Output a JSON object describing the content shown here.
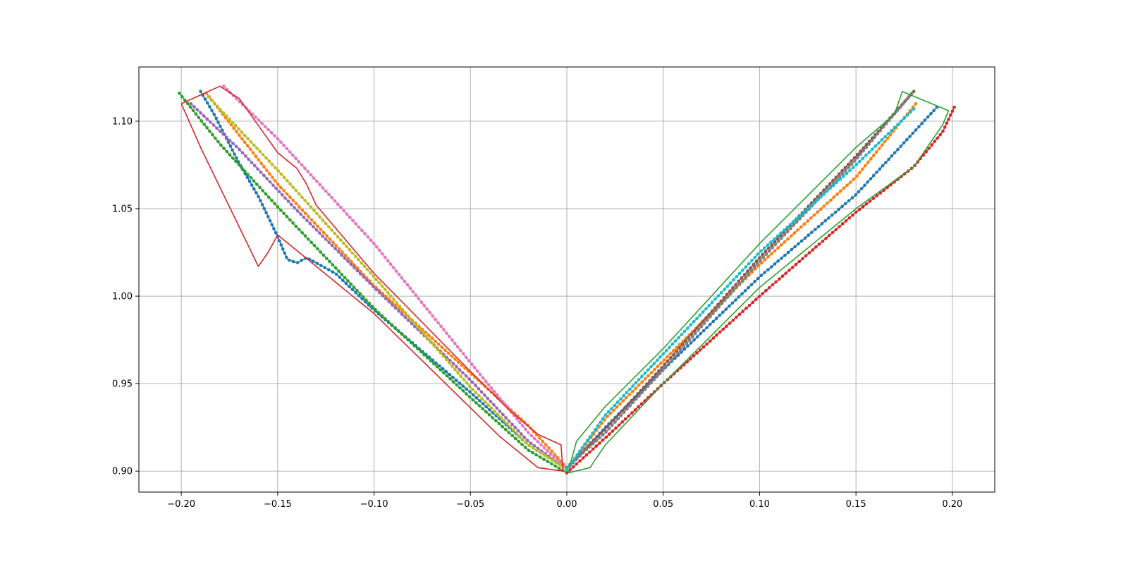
{
  "chart_data": {
    "type": "line",
    "title": "",
    "xlabel": "",
    "ylabel": "",
    "xlim": [
      -0.222,
      0.222
    ],
    "ylim": [
      0.888,
      1.131
    ],
    "grid": true,
    "legend": "none",
    "x_ticks": [
      -0.2,
      -0.15,
      -0.1,
      -0.05,
      0.0,
      0.05,
      0.1,
      0.15,
      0.2
    ],
    "x_tick_labels": [
      "−0.20",
      "−0.15",
      "−0.10",
      "−0.05",
      "0.00",
      "0.05",
      "0.10",
      "0.15",
      "0.20"
    ],
    "y_ticks": [
      0.9,
      0.95,
      1.0,
      1.05,
      1.1
    ],
    "y_tick_labels": [
      "0.90",
      "0.95",
      "1.00",
      "1.05",
      "1.10"
    ],
    "series": [
      {
        "color": "#1f77b4",
        "markers": true,
        "points": [
          [
            -0.19,
            1.117
          ],
          [
            -0.183,
            1.104
          ],
          [
            -0.17,
            1.076
          ],
          [
            -0.16,
            1.057
          ],
          [
            -0.15,
            1.034
          ],
          [
            -0.145,
            1.021
          ],
          [
            -0.14,
            1.019
          ],
          [
            -0.135,
            1.022
          ],
          [
            -0.12,
            1.013
          ],
          [
            -0.1,
            0.992
          ],
          [
            -0.05,
            0.945
          ],
          [
            -0.02,
            0.915
          ],
          [
            0.0,
            0.901
          ]
        ]
      },
      {
        "color": "#ff7f0e",
        "markers": true,
        "points": [
          [
            -0.187,
            1.116
          ],
          [
            -0.15,
            1.064
          ],
          [
            -0.1,
            1.006
          ],
          [
            -0.05,
            0.956
          ],
          [
            -0.02,
            0.926
          ],
          [
            0.0,
            0.902
          ]
        ]
      },
      {
        "color": "#2ca02c",
        "markers": true,
        "points": [
          [
            -0.201,
            1.116
          ],
          [
            -0.18,
            1.087
          ],
          [
            -0.15,
            1.051
          ],
          [
            -0.1,
            0.993
          ],
          [
            -0.05,
            0.942
          ],
          [
            -0.02,
            0.912
          ],
          [
            0.0,
            0.899
          ]
        ]
      },
      {
        "color": "#9467bd",
        "markers": true,
        "points": [
          [
            -0.195,
            1.11
          ],
          [
            -0.17,
            1.084
          ],
          [
            -0.14,
            1.049
          ],
          [
            -0.1,
            1.005
          ],
          [
            -0.05,
            0.952
          ],
          [
            -0.02,
            0.917
          ],
          [
            0.0,
            0.901
          ]
        ]
      },
      {
        "color": "#e377c2",
        "markers": true,
        "points": [
          [
            -0.178,
            1.12
          ],
          [
            -0.15,
            1.09
          ],
          [
            -0.1,
            1.03
          ],
          [
            -0.05,
            0.962
          ],
          [
            -0.02,
            0.922
          ],
          [
            0.0,
            0.901
          ]
        ]
      },
      {
        "color": "#bcbd22",
        "markers": true,
        "points": [
          [
            -0.186,
            1.114
          ],
          [
            -0.15,
            1.072
          ],
          [
            -0.1,
            1.011
          ],
          [
            -0.05,
            0.948
          ],
          [
            -0.02,
            0.915
          ],
          [
            0.0,
            0.901
          ]
        ]
      },
      {
        "color": "#d62728",
        "markers": false,
        "points": [
          [
            -0.2,
            1.11
          ],
          [
            -0.18,
            1.12
          ],
          [
            -0.17,
            1.113
          ],
          [
            -0.15,
            1.082
          ],
          [
            -0.14,
            1.073
          ],
          [
            -0.135,
            1.064
          ],
          [
            -0.13,
            1.052
          ],
          [
            -0.1,
            1.013
          ],
          [
            -0.05,
            0.957
          ],
          [
            -0.03,
            0.935
          ],
          [
            -0.015,
            0.921
          ],
          [
            -0.003,
            0.915
          ],
          [
            -0.002,
            0.9
          ],
          [
            -0.015,
            0.902
          ],
          [
            -0.035,
            0.92
          ],
          [
            -0.1,
            0.99
          ],
          [
            -0.15,
            1.035
          ],
          [
            -0.155,
            1.025
          ],
          [
            -0.16,
            1.017
          ],
          [
            -0.19,
            1.085
          ],
          [
            -0.2,
            1.11
          ]
        ]
      },
      {
        "color": "#1f77b4",
        "markers": true,
        "points": [
          [
            0.0,
            0.901
          ],
          [
            0.02,
            0.925
          ],
          [
            0.05,
            0.958
          ],
          [
            0.1,
            1.011
          ],
          [
            0.15,
            1.058
          ],
          [
            0.192,
            1.108
          ]
        ]
      },
      {
        "color": "#ff7f0e",
        "markers": true,
        "points": [
          [
            0.0,
            0.901
          ],
          [
            0.02,
            0.93
          ],
          [
            0.05,
            0.963
          ],
          [
            0.1,
            1.018
          ],
          [
            0.15,
            1.068
          ],
          [
            0.181,
            1.11
          ]
        ]
      },
      {
        "color": "#d62728",
        "markers": true,
        "points": [
          [
            0.0,
            0.899
          ],
          [
            0.02,
            0.919
          ],
          [
            0.05,
            0.95
          ],
          [
            0.1,
            1.0
          ],
          [
            0.15,
            1.048
          ],
          [
            0.18,
            1.074
          ],
          [
            0.195,
            1.094
          ],
          [
            0.201,
            1.108
          ]
        ]
      },
      {
        "color": "#8c564b",
        "markers": true,
        "points": [
          [
            0.0,
            0.902
          ],
          [
            0.02,
            0.924
          ],
          [
            0.05,
            0.96
          ],
          [
            0.1,
            1.022
          ],
          [
            0.15,
            1.08
          ],
          [
            0.18,
            1.117
          ]
        ]
      },
      {
        "color": "#7f7f7f",
        "markers": true,
        "points": [
          [
            0.0,
            0.902
          ],
          [
            0.02,
            0.922
          ],
          [
            0.05,
            0.958
          ],
          [
            0.1,
            1.02
          ],
          [
            0.15,
            1.078
          ],
          [
            0.179,
            1.116
          ]
        ]
      },
      {
        "color": "#17becf",
        "markers": true,
        "points": [
          [
            0.0,
            0.901
          ],
          [
            0.02,
            0.932
          ],
          [
            0.05,
            0.967
          ],
          [
            0.1,
            1.025
          ],
          [
            0.15,
            1.075
          ],
          [
            0.18,
            1.107
          ]
        ]
      },
      {
        "color": "#2ca02c",
        "markers": false,
        "points": [
          [
            0.001,
            0.899
          ],
          [
            0.002,
            0.905
          ],
          [
            0.005,
            0.917
          ],
          [
            0.02,
            0.937
          ],
          [
            0.05,
            0.97
          ],
          [
            0.1,
            1.03
          ],
          [
            0.15,
            1.085
          ],
          [
            0.17,
            1.104
          ],
          [
            0.174,
            1.117
          ],
          [
            0.198,
            1.106
          ],
          [
            0.195,
            1.098
          ],
          [
            0.18,
            1.074
          ],
          [
            0.15,
            1.05
          ],
          [
            0.1,
            1.005
          ],
          [
            0.05,
            0.95
          ],
          [
            0.02,
            0.915
          ],
          [
            0.012,
            0.902
          ],
          [
            0.001,
            0.899
          ]
        ]
      }
    ]
  }
}
